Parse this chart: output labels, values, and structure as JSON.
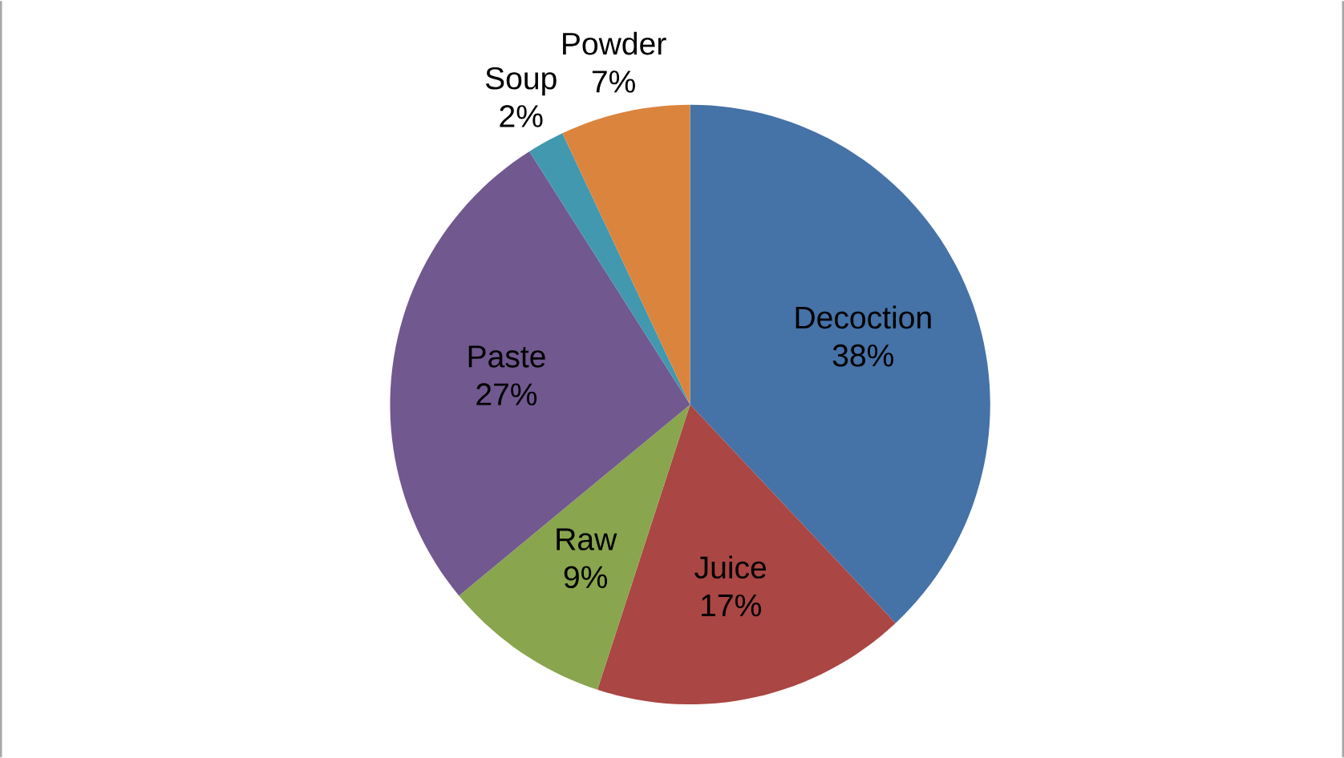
{
  "chart_data": {
    "type": "pie",
    "categories": [
      "Decoction",
      "Juice",
      "Raw",
      "Paste",
      "Soup",
      "Powder"
    ],
    "values": [
      38,
      17,
      9,
      27,
      2,
      7
    ],
    "value_labels": [
      "38%",
      "17%",
      "9%",
      "27%",
      "2%",
      "7%"
    ],
    "colors": [
      "#4572a7",
      "#aa4643",
      "#89a54e",
      "#71588f",
      "#4198af",
      "#db843d"
    ],
    "legend": false
  }
}
